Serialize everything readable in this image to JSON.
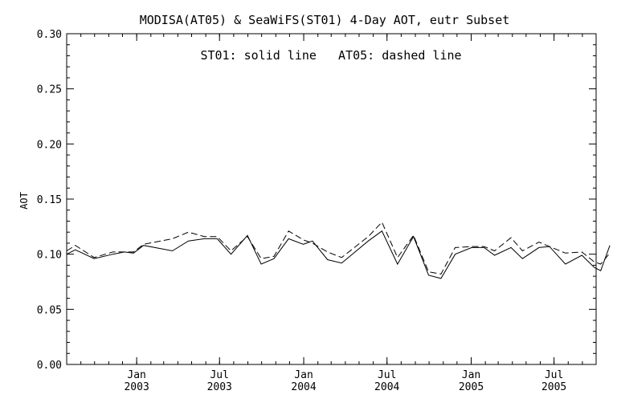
{
  "chart_data": {
    "type": "line",
    "title": "MODISA(AT05) & SeaWiFS(ST01) 4-Day AOT, eutr Subset",
    "annotation": "ST01: solid line   AT05: dashed line",
    "ylabel": "AOT",
    "xlabel": "",
    "ylim": [
      0.0,
      0.3
    ],
    "xlim": [
      "2002-08-01",
      "2005-10-01"
    ],
    "y_ticks": [
      "0.00",
      "0.05",
      "0.10",
      "0.15",
      "0.20",
      "0.25",
      "0.30"
    ],
    "x_ticks": [
      {
        "date": "2003-01-01",
        "month": "Jan",
        "year": "2003"
      },
      {
        "date": "2003-07-01",
        "month": "Jul",
        "year": "2003"
      },
      {
        "date": "2004-01-01",
        "month": "Jan",
        "year": "2004"
      },
      {
        "date": "2004-07-01",
        "month": "Jul",
        "year": "2004"
      },
      {
        "date": "2005-01-01",
        "month": "Jan",
        "year": "2005"
      },
      {
        "date": "2005-07-01",
        "month": "Jul",
        "year": "2005"
      }
    ],
    "grid": false,
    "series": [
      {
        "name": "ST01",
        "style": "solid",
        "points": [
          [
            "2002-08-01",
            0.1
          ],
          [
            "2002-08-20",
            0.104
          ],
          [
            "2002-09-30",
            0.096
          ],
          [
            "2002-11-10",
            0.1
          ],
          [
            "2002-12-05",
            0.102
          ],
          [
            "2002-12-25",
            0.101
          ],
          [
            "2003-01-16",
            0.108
          ],
          [
            "2003-03-20",
            0.103
          ],
          [
            "2003-04-24",
            0.112
          ],
          [
            "2003-05-29",
            0.114
          ],
          [
            "2003-06-26",
            0.114
          ],
          [
            "2003-07-26",
            0.1
          ],
          [
            "2003-08-31",
            0.117
          ],
          [
            "2003-09-30",
            0.091
          ],
          [
            "2003-10-28",
            0.096
          ],
          [
            "2003-11-29",
            0.114
          ],
          [
            "2003-12-31",
            0.109
          ],
          [
            "2004-01-20",
            0.112
          ],
          [
            "2004-02-22",
            0.095
          ],
          [
            "2004-03-24",
            0.092
          ],
          [
            "2004-05-21",
            0.112
          ],
          [
            "2004-06-20",
            0.121
          ],
          [
            "2004-07-24",
            0.091
          ],
          [
            "2004-08-28",
            0.116
          ],
          [
            "2004-09-30",
            0.081
          ],
          [
            "2004-10-27",
            0.078
          ],
          [
            "2004-11-27",
            0.1
          ],
          [
            "2005-01-02",
            0.106
          ],
          [
            "2005-01-29",
            0.106
          ],
          [
            "2005-02-21",
            0.099
          ],
          [
            "2005-03-29",
            0.106
          ],
          [
            "2005-04-23",
            0.096
          ],
          [
            "2005-05-29",
            0.106
          ],
          [
            "2005-06-21",
            0.107
          ],
          [
            "2005-07-26",
            0.091
          ],
          [
            "2005-08-31",
            0.099
          ],
          [
            "2005-09-27",
            0.088
          ],
          [
            "2005-10-11",
            0.085
          ],
          [
            "2005-10-31",
            0.108
          ]
        ]
      },
      {
        "name": "AT05",
        "style": "dashed",
        "points": [
          [
            "2002-08-01",
            0.103
          ],
          [
            "2002-08-20",
            0.108
          ],
          [
            "2002-09-30",
            0.097
          ],
          [
            "2002-11-10",
            0.102
          ],
          [
            "2002-12-25",
            0.102
          ],
          [
            "2003-01-16",
            0.109
          ],
          [
            "2003-03-20",
            0.114
          ],
          [
            "2003-04-24",
            0.12
          ],
          [
            "2003-05-29",
            0.116
          ],
          [
            "2003-06-26",
            0.116
          ],
          [
            "2003-07-26",
            0.103
          ],
          [
            "2003-08-31",
            0.116
          ],
          [
            "2003-09-30",
            0.096
          ],
          [
            "2003-10-28",
            0.098
          ],
          [
            "2003-11-29",
            0.121
          ],
          [
            "2003-12-31",
            0.113
          ],
          [
            "2004-01-20",
            0.11
          ],
          [
            "2004-02-22",
            0.102
          ],
          [
            "2004-03-24",
            0.097
          ],
          [
            "2004-05-21",
            0.116
          ],
          [
            "2004-06-20",
            0.129
          ],
          [
            "2004-07-24",
            0.097
          ],
          [
            "2004-08-28",
            0.117
          ],
          [
            "2004-09-30",
            0.084
          ],
          [
            "2004-10-27",
            0.082
          ],
          [
            "2004-11-27",
            0.106
          ],
          [
            "2005-01-02",
            0.107
          ],
          [
            "2005-01-29",
            0.107
          ],
          [
            "2005-02-21",
            0.103
          ],
          [
            "2005-03-29",
            0.115
          ],
          [
            "2005-04-23",
            0.103
          ],
          [
            "2005-05-29",
            0.111
          ],
          [
            "2005-06-21",
            0.107
          ],
          [
            "2005-07-26",
            0.101
          ],
          [
            "2005-08-31",
            0.102
          ],
          [
            "2005-09-27",
            0.093
          ],
          [
            "2005-10-11",
            0.091
          ],
          [
            "2005-10-31",
            0.101
          ]
        ]
      }
    ]
  }
}
